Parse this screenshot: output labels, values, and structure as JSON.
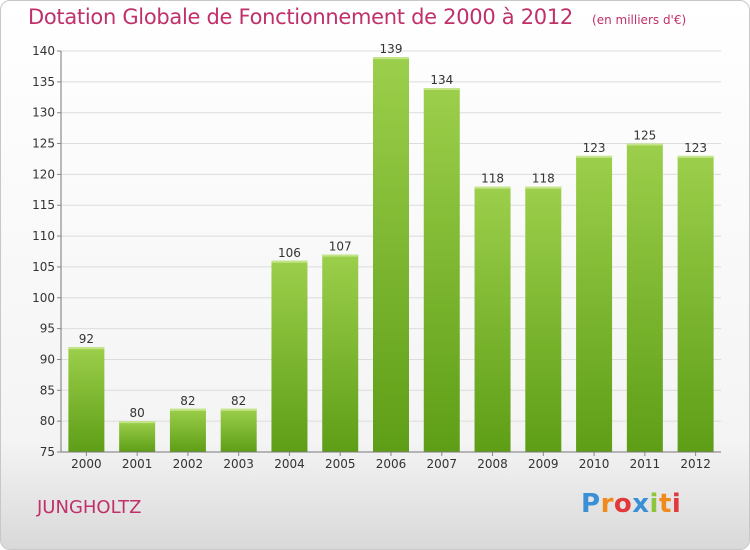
{
  "title": "Dotation Globale de Fonctionnement de 2000 à 2012",
  "subtitle": "(en milliers d'€)",
  "commune": "JUNGHOLTZ",
  "logo": {
    "letters": [
      "P",
      "r",
      "o",
      "x",
      "i",
      "t",
      "i"
    ],
    "colors": [
      "#3a8fd6",
      "#f08a1c",
      "#e23a3a",
      "#3a8fd6",
      "#8cc63f",
      "#f08a1c",
      "#e23a3a"
    ]
  },
  "colors": {
    "bar_light": "#9ccf4b",
    "bar_dark": "#5e9e16",
    "title": "#c0306a"
  },
  "chart_data": {
    "type": "bar",
    "categories": [
      "2000",
      "2001",
      "2002",
      "2003",
      "2004",
      "2005",
      "2006",
      "2007",
      "2008",
      "2009",
      "2010",
      "2011",
      "2012"
    ],
    "values": [
      92,
      80,
      82,
      82,
      106,
      107,
      139,
      134,
      118,
      118,
      123,
      125,
      123
    ],
    "data_labels": [
      "92",
      "80",
      "82",
      "82",
      "106",
      "107",
      "139",
      "134",
      "118",
      "118",
      "123",
      "125",
      "123"
    ],
    "ylim": [
      75,
      140
    ],
    "yticks": [
      "75",
      "80",
      "85",
      "90",
      "95",
      "100",
      "105",
      "110",
      "115",
      "120",
      "125",
      "130",
      "135",
      "140"
    ],
    "grid": true
  }
}
